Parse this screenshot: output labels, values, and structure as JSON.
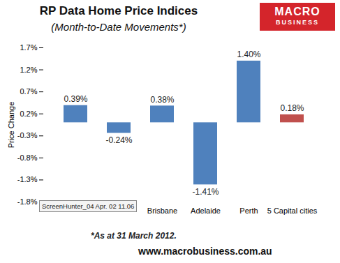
{
  "chart_data": {
    "type": "bar",
    "title": "RP Data Home Price Indices",
    "subtitle": "(Month-to-Date Movements*)",
    "y_label": "Price Change",
    "categories": [
      null,
      null,
      "Brisbane",
      "Adelaide",
      "Perth",
      "5 Capital cities"
    ],
    "values": [
      0.39,
      -0.24,
      0.38,
      -1.41,
      1.4,
      0.18
    ],
    "value_labels": [
      "0.39%",
      "-0.24%",
      "0.38%",
      "-1.41%",
      "1.40%",
      "0.18%"
    ],
    "colors": [
      "#4f81bd",
      "#4f81bd",
      "#4f81bd",
      "#4f81bd",
      "#4f81bd",
      "#c0504d"
    ],
    "ylim": [
      -1.8,
      1.7
    ],
    "yticks": [
      {
        "value": -1.8,
        "label": "-1.8%"
      },
      {
        "value": -1.3,
        "label": "-1.3%"
      },
      {
        "value": -0.8,
        "label": "-0.8%"
      },
      {
        "value": -0.3,
        "label": "-0.3%"
      },
      {
        "value": 0.2,
        "label": "0.2%"
      },
      {
        "value": 0.7,
        "label": "0.7%"
      },
      {
        "value": 1.2,
        "label": "1.2%"
      },
      {
        "value": 1.7,
        "label": "1.7%"
      }
    ],
    "grid": false,
    "data_labels": true,
    "annotations": [
      "MACRO",
      "BUSINESS",
      "ScreenHunter_04 Apr. 02 11.06",
      "*As at 31 March 2012.",
      "www.macrobusiness.com.au"
    ]
  }
}
